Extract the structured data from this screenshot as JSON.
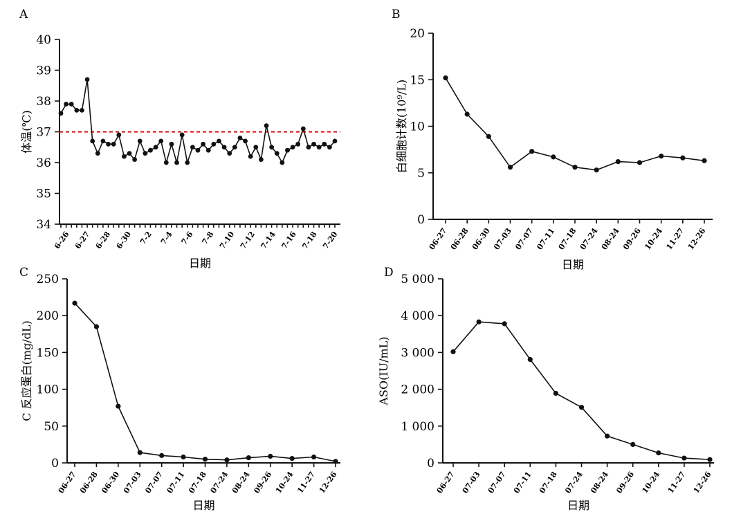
{
  "chart_data": [
    {
      "panel_label": "A",
      "type": "line",
      "xlabel": "日期",
      "ylabel": "体温(℃)",
      "y_tick_labels": [
        "34",
        "35",
        "36",
        "37",
        "38",
        "39",
        "40"
      ],
      "ylim": [
        34,
        40
      ],
      "x_tick_labels": [
        "6-26",
        "6-27",
        "6-28",
        "6-30",
        "7-2",
        "7-4",
        "7-6",
        "7-8",
        "7-10",
        "7-12",
        "7-14",
        "7-16",
        "7-18",
        "7-20"
      ],
      "reference_line": {
        "y": 37.0,
        "color": "#e02020",
        "style": "dashed"
      },
      "series": [
        {
          "values": [
            37.6,
            37.9,
            37.9,
            37.7,
            37.7,
            38.7,
            36.7,
            36.3,
            36.7,
            36.6,
            36.6,
            36.9,
            36.2,
            36.3,
            36.1,
            36.7,
            36.3,
            36.4,
            36.5,
            36.7,
            36.0,
            36.6,
            36.0,
            36.9,
            36.0,
            36.5,
            36.4,
            36.6,
            36.4,
            36.6,
            36.7,
            36.5,
            36.3,
            36.5,
            36.8,
            36.7,
            36.2,
            36.5,
            36.1,
            37.2,
            36.5,
            36.3,
            36.0,
            36.4,
            36.5,
            36.6,
            37.1,
            36.5,
            36.6,
            36.5,
            36.6,
            36.5,
            36.7
          ]
        }
      ]
    },
    {
      "panel_label": "B",
      "type": "line",
      "xlabel": "日期",
      "ylabel": "白细胞计数(10⁹/L)",
      "y_tick_labels": [
        "0",
        "5",
        "10",
        "15",
        "20"
      ],
      "ylim": [
        0,
        20
      ],
      "categories": [
        "06-27",
        "06-28",
        "06-30",
        "07-03",
        "07-07",
        "07-11",
        "07-18",
        "07-24",
        "08-24",
        "09-26",
        "10-24",
        "11-27",
        "12-26"
      ],
      "series": [
        {
          "values": [
            15.2,
            11.3,
            8.9,
            5.6,
            7.3,
            6.7,
            5.6,
            5.3,
            6.2,
            6.1,
            6.8,
            6.6,
            6.3
          ]
        }
      ]
    },
    {
      "panel_label": "C",
      "type": "line",
      "xlabel": "日期",
      "ylabel": "C 反应蛋白(mg/dL)",
      "y_tick_labels": [
        "0",
        "50",
        "100",
        "150",
        "200",
        "250"
      ],
      "ylim": [
        0,
        250
      ],
      "categories": [
        "06-27",
        "06-28",
        "06-30",
        "07-03",
        "07-07",
        "07-11",
        "07-18",
        "07-24",
        "08-24",
        "09-26",
        "10-24",
        "11-27",
        "12-26"
      ],
      "series": [
        {
          "values": [
            217,
            185,
            77,
            14,
            10,
            8,
            5,
            4,
            7,
            9,
            6,
            8,
            2
          ]
        }
      ]
    },
    {
      "panel_label": "D",
      "type": "line",
      "xlabel": "日期",
      "ylabel": "ASO(IU/mL)",
      "y_tick_labels": [
        "0",
        "1 000",
        "2 000",
        "3 000",
        "4 000",
        "5 000"
      ],
      "ylim": [
        0,
        5000
      ],
      "categories": [
        "06-27",
        "07-03",
        "07-07",
        "07-11",
        "07-18",
        "07-24",
        "08-24",
        "09-26",
        "10-24",
        "11-27",
        "12-26"
      ],
      "series": [
        {
          "values": [
            3020,
            3830,
            3780,
            2810,
            1890,
            1510,
            730,
            500,
            270,
            130,
            90
          ]
        }
      ]
    }
  ]
}
